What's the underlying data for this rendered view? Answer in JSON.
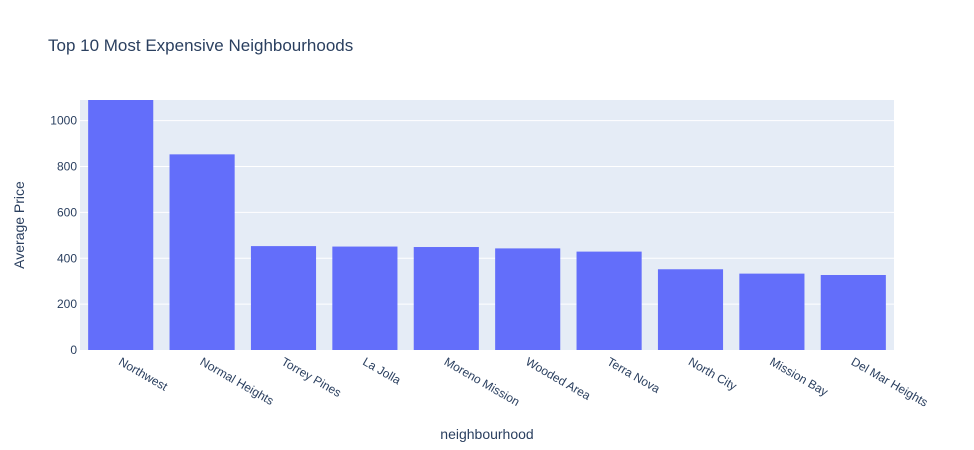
{
  "chart_data": {
    "type": "bar",
    "title": "Top 10 Most Expensive Neighbourhoods",
    "xlabel": "neighbourhood",
    "ylabel": "Average Price",
    "categories": [
      "Northwest",
      "Normal Heights",
      "Torrey Pines",
      "La Jolla",
      "Moreno Mission",
      "Wooded Area",
      "Terra Nova",
      "North City",
      "Mission Bay",
      "Del Mar Heights"
    ],
    "values": [
      1096,
      853,
      453,
      451,
      449,
      443,
      429,
      352,
      333,
      327
    ],
    "ylim": [
      0,
      1090
    ],
    "yticks": [
      0,
      200,
      400,
      600,
      800,
      1000
    ],
    "grid": true,
    "legend": "none",
    "colors": {
      "bar": "#636efa",
      "plot_bg": "#e5ecf6",
      "grid": "#ffffff",
      "text": "#2a3f5f"
    }
  }
}
